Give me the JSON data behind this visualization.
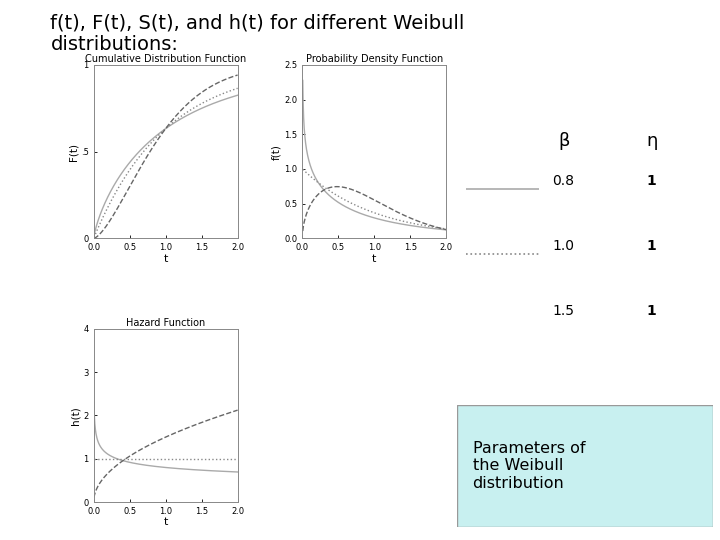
{
  "title_line1": "f(t), F(t), S(t), and h(t) for different Weibull",
  "title_line2": "distributions:",
  "title_fontsize": 14,
  "background_color": "#ffffff",
  "params": [
    {
      "beta": 0.8,
      "eta": 1,
      "linestyle": "solid",
      "color": "#aaaaaa",
      "linewidth": 1.0
    },
    {
      "beta": 1.0,
      "eta": 1,
      "linestyle": "dotted",
      "color": "#888888",
      "linewidth": 1.0
    },
    {
      "beta": 1.5,
      "eta": 1,
      "linestyle": "dashed",
      "color": "#666666",
      "linewidth": 1.0
    }
  ],
  "t_min": 0.005,
  "t_max": 2.0,
  "t_points": 500,
  "cdf_title": "Cumulative Distribution Function",
  "pdf_title": "Probability Density Function",
  "haz_title": "Hazard Function",
  "cdf_ylabel": "F(t)",
  "pdf_ylabel": "f(t)",
  "haz_ylabel": "h(t)",
  "xlabel": "t",
  "cdf_ylim": [
    0,
    1.0
  ],
  "pdf_ylim": [
    0.0,
    2.5
  ],
  "haz_ylim": [
    0,
    4
  ],
  "xlim": [
    0,
    2.0
  ],
  "legend_beta_label": "β",
  "legend_eta_label": "η",
  "legend_rows": [
    {
      "beta": "0.8",
      "eta": "1"
    },
    {
      "beta": "1.0",
      "eta": "1"
    },
    {
      "beta": "1.5",
      "eta": "1"
    }
  ],
  "box_text": "Parameters of\nthe Weibull\ndistribution",
  "box_color": "#c8f0f0",
  "box_edge_color": "#999999"
}
